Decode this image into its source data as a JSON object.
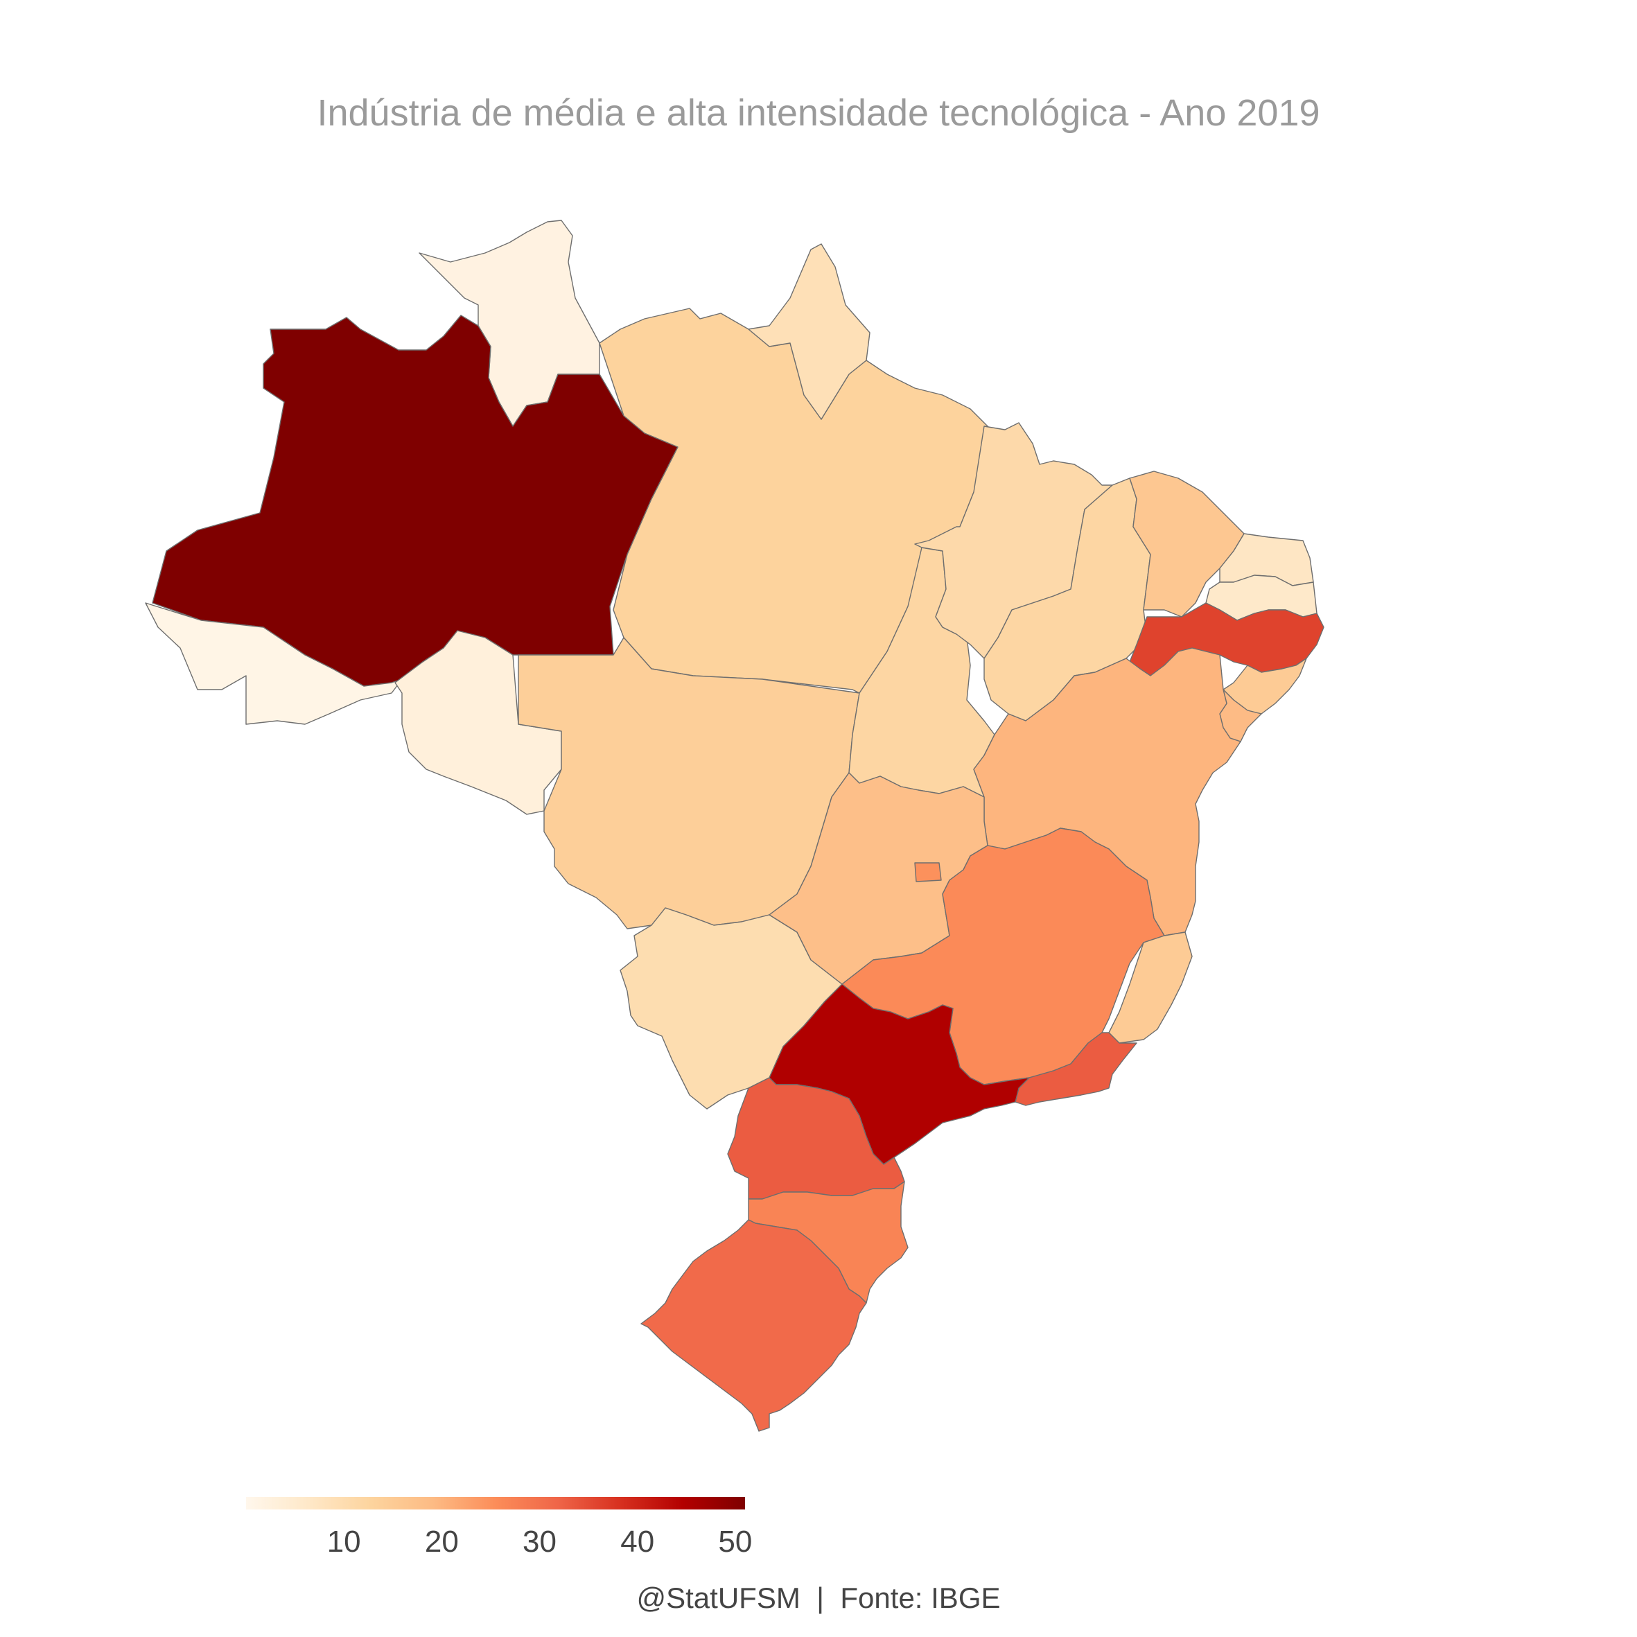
{
  "title": "Indústria de média e alta intensidade tecnológica - Ano 2019",
  "caption": "@StatUFSM  |  Fonte: IBGE",
  "legend": {
    "min": 0,
    "max": 51,
    "ticks": [
      "10",
      "20",
      "30",
      "40",
      "50"
    ],
    "tick_values": [
      10,
      20,
      30,
      40,
      50
    ],
    "colors": [
      "#fff7ec",
      "#fee8c8",
      "#fdd49e",
      "#fdbb84",
      "#fc8d59",
      "#ef6548",
      "#d7301f",
      "#b30000",
      "#7f0000"
    ]
  },
  "map_data": {
    "type": "choropleth",
    "regions": [
      {
        "id": "AM",
        "value": 51
      },
      {
        "id": "RR",
        "value": 2
      },
      {
        "id": "AC",
        "value": 1
      },
      {
        "id": "RO",
        "value": 3
      },
      {
        "id": "PA",
        "value": 13
      },
      {
        "id": "AP",
        "value": 9
      },
      {
        "id": "MT",
        "value": 14
      },
      {
        "id": "MS",
        "value": 10
      },
      {
        "id": "TO",
        "value": 12
      },
      {
        "id": "MA",
        "value": 11
      },
      {
        "id": "PI",
        "value": 12
      },
      {
        "id": "CE",
        "value": 16
      },
      {
        "id": "RN",
        "value": 7
      },
      {
        "id": "PB",
        "value": 6
      },
      {
        "id": "PE",
        "value": 36
      },
      {
        "id": "AL",
        "value": 15
      },
      {
        "id": "SE",
        "value": 19
      },
      {
        "id": "BA",
        "value": 20
      },
      {
        "id": "GO",
        "value": 18
      },
      {
        "id": "DF",
        "value": 25
      },
      {
        "id": "MG",
        "value": 26
      },
      {
        "id": "ES",
        "value": 15
      },
      {
        "id": "RJ",
        "value": 33
      },
      {
        "id": "SP",
        "value": 45
      },
      {
        "id": "PR",
        "value": 33
      },
      {
        "id": "SC",
        "value": 27
      },
      {
        "id": "RS",
        "value": 31
      }
    ]
  }
}
